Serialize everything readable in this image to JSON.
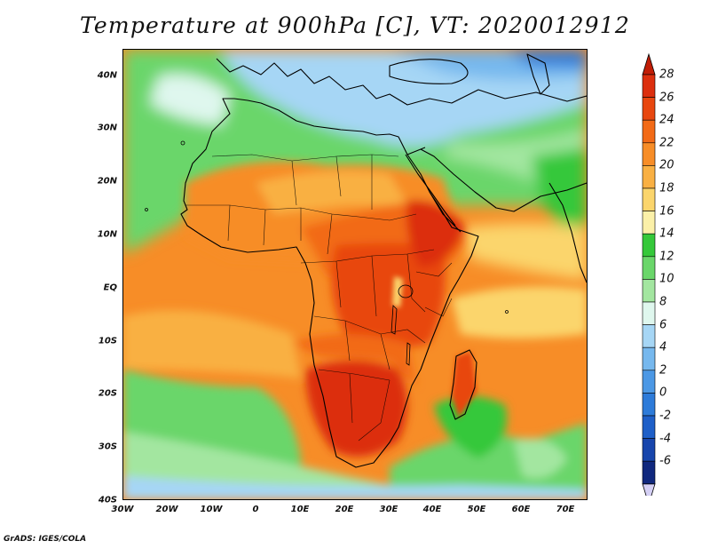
{
  "title": "Temperature at 900hPa [C], VT: 2020012912",
  "footer": "GrADS: IGES/COLA",
  "map": {
    "lon_range": [
      -30,
      75
    ],
    "lat_range": [
      -40,
      45
    ],
    "lat_labels": [
      "40N",
      "30N",
      "20N",
      "10N",
      "EQ",
      "10S",
      "20S",
      "30S",
      "40S"
    ],
    "lon_labels": [
      "30W",
      "20W",
      "10W",
      "0",
      "10E",
      "20E",
      "30E",
      "40E",
      "50E",
      "60E",
      "70E"
    ]
  },
  "colorbar": {
    "labels": [
      "28",
      "26",
      "24",
      "22",
      "20",
      "18",
      "16",
      "14",
      "12",
      "10",
      "8",
      "6",
      "4",
      "2",
      "0",
      "-2",
      "-4",
      "-6"
    ],
    "colors": [
      "#dc2f0e",
      "#e8470f",
      "#f26a16",
      "#f78d27",
      "#f9b043",
      "#fbd56c",
      "#fbf0a8",
      "#35c83a",
      "#6ad66a",
      "#a3e6a0",
      "#dff7ee",
      "#a6d6f5",
      "#76b8ee",
      "#4c98e5",
      "#2d7bd9",
      "#1e5fc8",
      "#1745ac",
      "#10287e"
    ],
    "top_triangle_color": "#c11d06",
    "bottom_triangle_color": "#d5d0f5"
  }
}
